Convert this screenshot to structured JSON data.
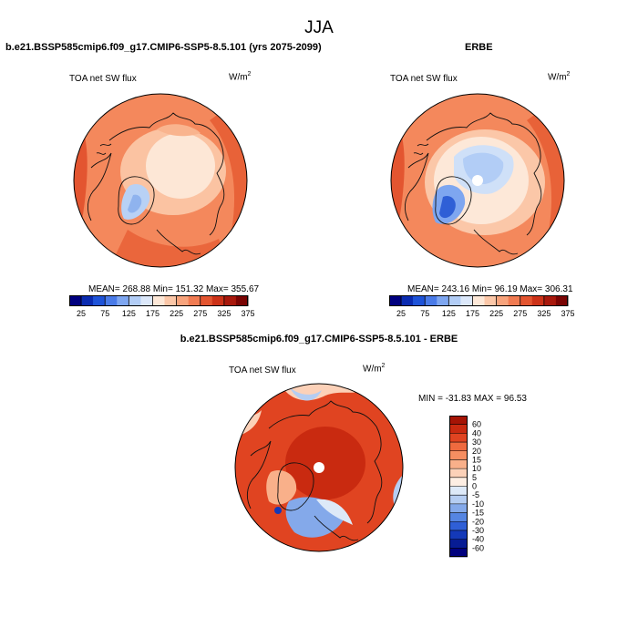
{
  "figure": {
    "title": "JJA"
  },
  "panels": {
    "model": {
      "title": "b.e21.BSSP585cmip6.f09_g17.CMIP6-SSP5-8.5.101 (yrs 2075-2099)",
      "left_label": "TOA net SW flux",
      "units": "W/m",
      "units_sup": "2",
      "stats": "MEAN= 268.88  Min= 151.32  Max= 355.67"
    },
    "obs": {
      "title": "ERBE",
      "left_label": "TOA net SW flux",
      "units": "W/m",
      "units_sup": "2",
      "stats": "MEAN= 243.16  Min=  96.19  Max= 306.31"
    },
    "diff": {
      "title": "b.e21.BSSP585cmip6.f09_g17.CMIP6-SSP5-8.5.101 - ERBE",
      "left_label": "TOA net SW flux",
      "units": "W/m",
      "units_sup": "2",
      "stats": "MIN = -31.83 MAX =  96.53"
    }
  },
  "chart_data": [
    {
      "type": "heatmap",
      "projection": "north-polar-stereographic",
      "title": "b.e21.BSSP585cmip6.f09_g17.CMIP6-SSP5-8.5.101 (yrs 2075-2099)",
      "variable": "TOA net SW flux",
      "units": "W/m2",
      "mean": 268.88,
      "min": 151.32,
      "max": 355.67,
      "colorbar": {
        "orientation": "horizontal",
        "ticks": [
          "25",
          "75",
          "125",
          "175",
          "225",
          "275",
          "325",
          "375"
        ],
        "colors": [
          "#00007f",
          "#0a2bb0",
          "#1e53d8",
          "#4a7be8",
          "#7ea6f0",
          "#b2cdf6",
          "#dce8fa",
          "#fde8d8",
          "#fbc7a8",
          "#f7a37c",
          "#f07b52",
          "#e35530",
          "#cc3218",
          "#a8180c",
          "#7a0403"
        ]
      }
    },
    {
      "type": "heatmap",
      "projection": "north-polar-stereographic",
      "title": "ERBE",
      "variable": "TOA net SW flux",
      "units": "W/m2",
      "mean": 243.16,
      "min": 96.19,
      "max": 306.31,
      "colorbar": {
        "orientation": "horizontal",
        "ticks": [
          "25",
          "75",
          "125",
          "175",
          "225",
          "275",
          "325",
          "375"
        ],
        "colors": [
          "#00007f",
          "#0a2bb0",
          "#1e53d8",
          "#4a7be8",
          "#7ea6f0",
          "#b2cdf6",
          "#dce8fa",
          "#fde8d8",
          "#fbc7a8",
          "#f7a37c",
          "#f07b52",
          "#e35530",
          "#cc3218",
          "#a8180c",
          "#7a0403"
        ]
      }
    },
    {
      "type": "heatmap",
      "projection": "north-polar-stereographic",
      "title": "b.e21.BSSP585cmip6.f09_g17.CMIP6-SSP5-8.5.101 - ERBE",
      "variable": "TOA net SW flux",
      "units": "W/m2",
      "min": -31.83,
      "max": 96.53,
      "colorbar": {
        "orientation": "vertical",
        "ticks": [
          "60",
          "40",
          "30",
          "20",
          "15",
          "10",
          "5",
          "0",
          "-5",
          "-10",
          "-15",
          "-20",
          "-30",
          "-40",
          "-60"
        ],
        "colors": [
          "#a51405",
          "#c92a10",
          "#e04421",
          "#ef6a3f",
          "#f68e61",
          "#f9b08a",
          "#fcd1b8",
          "#fdeee3",
          "#dde9f8",
          "#b5cdf2",
          "#84a9ea",
          "#5585e2",
          "#2f5fd6",
          "#1439b8",
          "#071c94",
          "#00007f"
        ]
      }
    }
  ]
}
